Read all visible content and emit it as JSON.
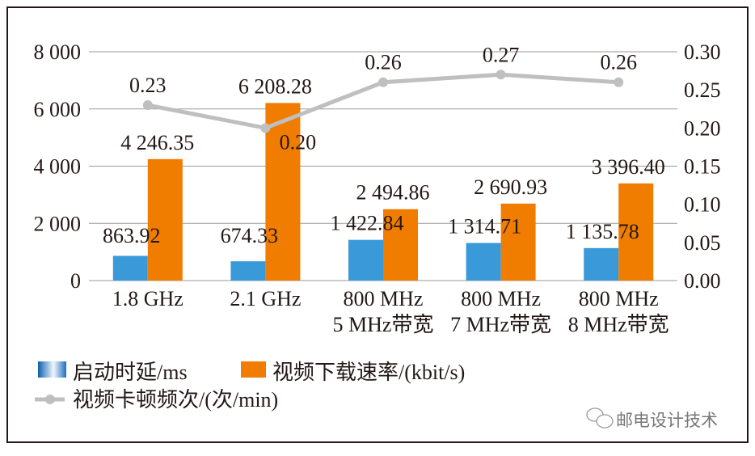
{
  "chart_data": {
    "type": "bar",
    "categories": [
      [
        "1.8 GHz"
      ],
      [
        "2.1 GHz"
      ],
      [
        "800 MHz",
        "5 MHz带宽"
      ],
      [
        "800 MHz",
        "7 MHz带宽"
      ],
      [
        "800 MHz",
        "8 MHz带宽"
      ]
    ],
    "left_axis": {
      "ylim": [
        0,
        8000
      ],
      "ticks": [
        0,
        2000,
        4000,
        6000,
        8000
      ],
      "tick_labels": [
        "0",
        "2 000",
        "4 000",
        "6 000",
        "8 000"
      ]
    },
    "right_axis": {
      "ylim": [
        0,
        0.3
      ],
      "ticks": [
        0,
        0.05,
        0.1,
        0.15,
        0.2,
        0.25,
        0.3
      ],
      "tick_labels": [
        "0.00",
        "0.05",
        "0.10",
        "0.15",
        "0.20",
        "0.25",
        "0.30"
      ]
    },
    "grid": true,
    "legend_position": "bottom-left",
    "series": [
      {
        "name": "启动时延/ms",
        "type": "bar",
        "axis": "left",
        "color": "#3a9ad9",
        "values": [
          863.92,
          674.33,
          1422.84,
          1314.71,
          1135.78
        ],
        "labels": [
          "863.92",
          "674.33",
          "1 422.84",
          "1 314.71",
          "1 135.78"
        ]
      },
      {
        "name": "视频下载速率/(kbit/s)",
        "type": "bar",
        "axis": "left",
        "color": "#f07c00",
        "values": [
          4246.35,
          6208.28,
          2494.86,
          2690.93,
          3396.4
        ],
        "labels": [
          "4 246.35",
          "6 208.28",
          "2 494.86",
          "2 690.93",
          "3 396.40"
        ]
      },
      {
        "name": "视频卡顿频次/(次/min)",
        "type": "line",
        "axis": "right",
        "color": "#bfbfbf",
        "values": [
          0.23,
          0.2,
          0.26,
          0.27,
          0.26
        ],
        "labels": [
          "0.23",
          "0.20",
          "0.26",
          "0.27",
          "0.26"
        ]
      }
    ]
  },
  "watermark": "邮电设计技术"
}
